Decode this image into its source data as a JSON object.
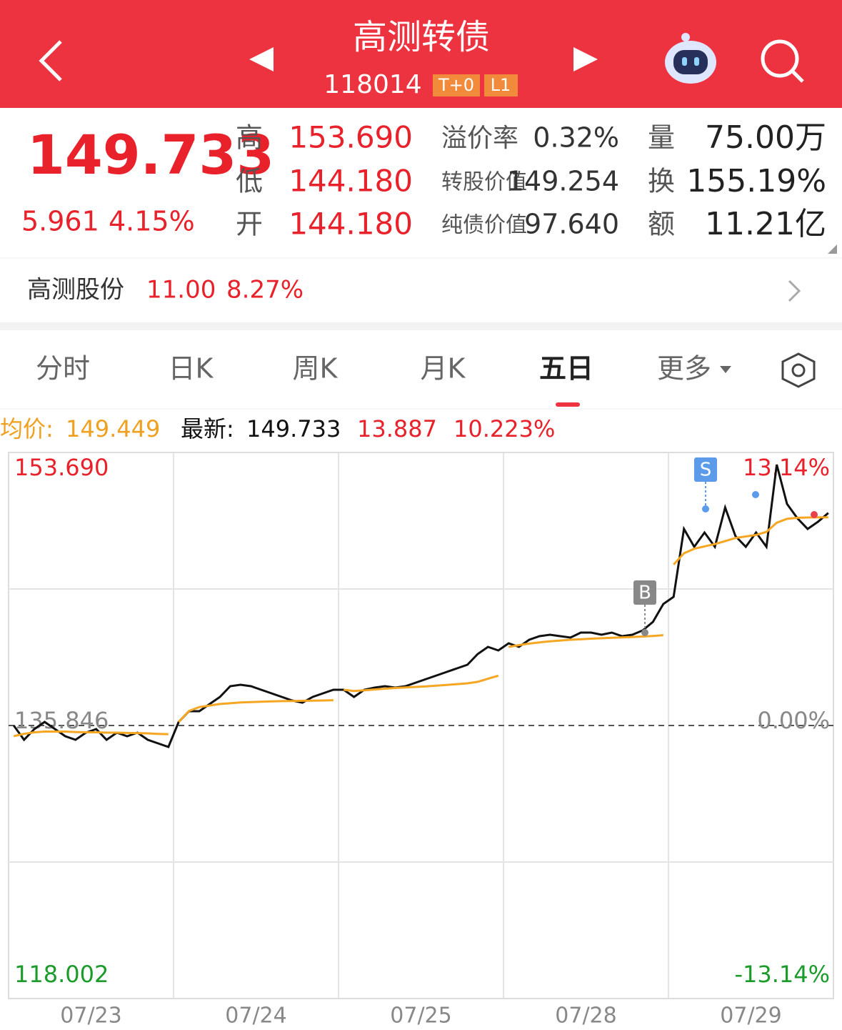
{
  "header": {
    "title": "高测转债",
    "code": "118014",
    "badges": [
      "T+0",
      "L1"
    ]
  },
  "quote": {
    "price": "149.733",
    "change": "5.961",
    "change_pct": "4.15%",
    "cols": [
      [
        {
          "label": "高",
          "value": "153.690"
        },
        {
          "label": "低",
          "value": "144.180"
        },
        {
          "label": "开",
          "value": "144.180"
        }
      ],
      [
        {
          "label": "溢价率",
          "value": "0.32%"
        },
        {
          "label": "转股价值",
          "value": "149.254"
        },
        {
          "label": "纯债价值",
          "value": "97.640"
        }
      ],
      [
        {
          "label": "量",
          "value": "75.00万"
        },
        {
          "label": "换",
          "value": "155.19%"
        },
        {
          "label": "额",
          "value": "11.21亿"
        }
      ]
    ]
  },
  "stock": {
    "name": "高测股份",
    "price": "11.00",
    "pct": "8.27%"
  },
  "tabs": [
    "分时",
    "日K",
    "周K",
    "月K",
    "五日",
    "更多"
  ],
  "chart_data": {
    "type": "line",
    "summary": {
      "avg": "149.449",
      "latest": "149.733",
      "change": "13.887",
      "pct": "10.223%"
    },
    "days": [
      "07/23",
      "07/24",
      "07/25",
      "07/28",
      "07/29"
    ],
    "series": [
      {
        "name": "最新:",
        "color": "#111111",
        "values": [
          135.846,
          134.912,
          135.612,
          136.08,
          135.612,
          135.145,
          134.912,
          135.379,
          135.612,
          134.912,
          135.379,
          135.145,
          135.379,
          134.912,
          134.678,
          134.444,
          136.08,
          136.78,
          136.78,
          137.247,
          137.715,
          138.415,
          138.509,
          138.415,
          138.182,
          137.948,
          137.715,
          137.481,
          137.341,
          137.715,
          137.948,
          138.182,
          138.182,
          137.715,
          138.182,
          138.322,
          138.415,
          138.322,
          138.415,
          138.649,
          138.883,
          139.116,
          139.349,
          139.583,
          139.816,
          140.517,
          140.984,
          140.751,
          141.218,
          140.984,
          141.451,
          141.685,
          141.778,
          141.685,
          141.591,
          141.918,
          141.918,
          141.778,
          141.918,
          141.685,
          141.778,
          142.059,
          142.619,
          143.787,
          144.254,
          148.692,
          147.524,
          148.458,
          147.524,
          150.093,
          148.225,
          147.524,
          148.458,
          147.524,
          152.896,
          150.327,
          149.392,
          148.692,
          149.159,
          149.733
        ]
      },
      {
        "name": "均价:",
        "color": "#f5a623",
        "values": [
          135.15,
          135.3,
          135.4,
          135.45,
          135.45,
          135.45,
          135.42,
          135.4,
          135.4,
          135.38,
          135.38,
          135.36,
          135.35,
          135.33,
          135.3,
          135.28,
          136.08,
          136.8,
          137.05,
          137.15,
          137.25,
          137.3,
          137.35,
          137.38,
          137.4,
          137.42,
          137.44,
          137.45,
          137.46,
          137.47,
          137.48,
          137.5,
          138.18,
          138.1,
          138.15,
          138.2,
          138.25,
          138.3,
          138.33,
          138.37,
          138.4,
          138.45,
          138.5,
          138.55,
          138.6,
          138.7,
          138.9,
          139.1,
          140.98,
          141.1,
          141.2,
          141.28,
          141.35,
          141.4,
          141.45,
          141.48,
          141.52,
          141.55,
          141.58,
          141.6,
          141.63,
          141.66,
          141.7,
          141.75,
          146.36,
          147.1,
          147.4,
          147.55,
          147.7,
          147.9,
          148.1,
          148.2,
          148.3,
          148.5,
          149.1,
          149.35,
          149.42,
          149.44,
          149.45,
          149.449
        ]
      }
    ],
    "ylim": [
      118.002,
      153.69
    ],
    "yticks": [
      {
        "value": 153.69,
        "label": "153.690"
      },
      {
        "value": 135.846,
        "label": "135.846"
      },
      {
        "value": 118.002,
        "label": "118.002"
      }
    ],
    "y2lim": [
      -13.14,
      13.14
    ],
    "y2ticks": [
      {
        "value": 13.14,
        "label": "13.14%"
      },
      {
        "value": 0,
        "label": "0.00%"
      },
      {
        "value": -13.14,
        "label": "-13.14%"
      }
    ],
    "annotations": [
      "B",
      "S"
    ]
  }
}
